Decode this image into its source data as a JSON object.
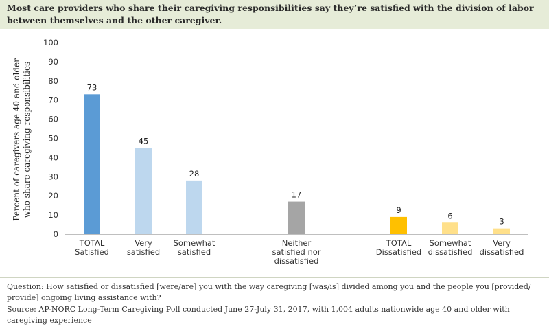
{
  "header": {
    "title": "Most care providers who share their caregiving responsibilities say they’re satisfied with the division of labor between themselves and the other caregiver."
  },
  "colors": {
    "header_bg": "#e6ecd8",
    "bar_dark_blue": "#5b9bd5",
    "bar_light_blue": "#bdd7ee",
    "bar_gray": "#a5a5a5",
    "bar_dark_yellow": "#ffc000",
    "bar_light_yellow": "#ffe08a"
  },
  "chart_data": {
    "type": "bar",
    "title": "",
    "ylabel": [
      "Percent of caregivers age 40 and older",
      "who share caregiving responsibilities"
    ],
    "xlabel": "",
    "ylim": [
      0,
      100
    ],
    "yticks": [
      0,
      10,
      20,
      30,
      40,
      50,
      60,
      70,
      80,
      90,
      100
    ],
    "grid": false,
    "legend": "none",
    "categories": [
      [
        "TOTAL",
        "Satisfied"
      ],
      [
        "Very",
        "satisfied"
      ],
      [
        "Somewhat",
        "satisfied"
      ],
      [
        "Neither",
        "satisfied nor",
        "dissatisfied"
      ],
      [
        "TOTAL",
        "Dissatisfied"
      ],
      [
        "Somewhat",
        "dissatisfied"
      ],
      [
        "Very",
        "dissatisfied"
      ]
    ],
    "values": [
      73,
      45,
      28,
      17,
      9,
      6,
      3
    ],
    "bar_colors": [
      "#5b9bd5",
      "#bdd7ee",
      "#bdd7ee",
      "#a5a5a5",
      "#ffc000",
      "#ffe08a",
      "#ffe08a"
    ]
  },
  "footer": {
    "question": "Question: How satisfied or dissatisfied [were/are] you with the way caregiving [was/is] divided among you and the people you [provided/ provide] ongoing living assistance with?",
    "source": "Source: AP-NORC Long-Term Caregiving Poll conducted June 27-July 31, 2017, with 1,004 adults nationwide age 40 and older with caregiving experience"
  }
}
